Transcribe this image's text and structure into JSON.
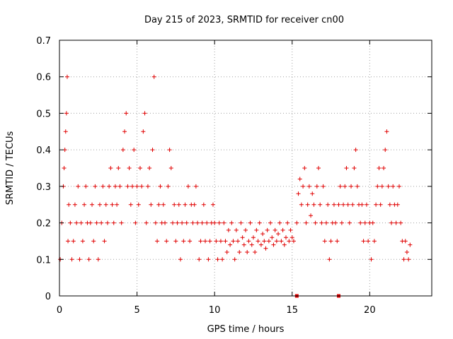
{
  "chart_data": {
    "type": "scatter",
    "title": "Day 215 of 2023, SRMTID for receiver cn00",
    "xlabel": "GPS time / hours",
    "ylabel": "SRMTID / TECUs",
    "xlim": [
      0,
      24
    ],
    "ylim": [
      0,
      0.7
    ],
    "xticks": [
      0,
      5,
      10,
      15,
      20
    ],
    "yticks": [
      0,
      0.1,
      0.2,
      0.3,
      0.4,
      0.5,
      0.6,
      0.7
    ],
    "xtick_labels": [
      "0",
      "5",
      "10",
      "15",
      "20"
    ],
    "ytick_labels": [
      "0",
      "0.1",
      "0.2",
      "0.3",
      "0.4",
      "0.5",
      "0.6",
      "0.7"
    ],
    "grid": true,
    "marker": "plus",
    "color": "#e00000",
    "series": [
      {
        "name": "SRMTID",
        "x": [
          0.05,
          0.15,
          0.25,
          0.3,
          0.35,
          0.4,
          0.45,
          0.5,
          0.55,
          0.6,
          0.7,
          0.8,
          0.9,
          1.0,
          1.1,
          1.2,
          1.3,
          1.4,
          1.5,
          1.6,
          1.7,
          1.8,
          1.9,
          2.0,
          2.1,
          2.2,
          2.3,
          2.4,
          2.5,
          2.6,
          2.7,
          2.8,
          2.9,
          3.0,
          3.1,
          3.2,
          3.3,
          3.4,
          3.5,
          3.6,
          3.7,
          3.8,
          3.9,
          4.0,
          4.1,
          4.2,
          4.3,
          4.4,
          4.5,
          4.6,
          4.7,
          4.8,
          4.9,
          5.0,
          5.1,
          5.2,
          5.3,
          5.4,
          5.5,
          5.6,
          5.7,
          5.8,
          5.9,
          6.0,
          6.1,
          6.2,
          6.3,
          6.4,
          6.5,
          6.6,
          6.7,
          6.8,
          6.9,
          7.0,
          7.1,
          7.2,
          7.3,
          7.4,
          7.5,
          7.6,
          7.7,
          7.8,
          7.9,
          8.0,
          8.1,
          8.2,
          8.3,
          8.4,
          8.5,
          8.6,
          8.7,
          8.8,
          8.9,
          9.0,
          9.1,
          9.2,
          9.3,
          9.4,
          9.5,
          9.6,
          9.7,
          9.8,
          9.9,
          10.0,
          10.1,
          10.2,
          10.3,
          10.4,
          10.5,
          10.6,
          10.7,
          10.8,
          10.9,
          11.0,
          11.1,
          11.2,
          11.3,
          11.4,
          11.5,
          11.6,
          11.7,
          11.8,
          11.9,
          12.0,
          12.1,
          12.2,
          12.3,
          12.4,
          12.5,
          12.6,
          12.7,
          12.8,
          12.9,
          13.0,
          13.1,
          13.2,
          13.3,
          13.4,
          13.5,
          13.6,
          13.7,
          13.8,
          13.9,
          14.0,
          14.1,
          14.2,
          14.3,
          14.4,
          14.5,
          14.6,
          14.7,
          14.8,
          14.9,
          15.0,
          15.1,
          15.3,
          15.4,
          15.5,
          15.6,
          15.7,
          15.8,
          15.9,
          16.0,
          16.1,
          16.2,
          16.3,
          16.4,
          16.5,
          16.6,
          16.7,
          16.8,
          16.9,
          17.0,
          17.1,
          17.2,
          17.3,
          17.4,
          17.5,
          17.6,
          17.7,
          17.8,
          17.9,
          18.0,
          18.1,
          18.2,
          18.3,
          18.4,
          18.5,
          18.6,
          18.7,
          18.8,
          18.9,
          19.0,
          19.1,
          19.2,
          19.3,
          19.4,
          19.5,
          19.6,
          19.7,
          19.8,
          19.9,
          20.0,
          20.1,
          20.2,
          20.3,
          20.4,
          20.5,
          20.6,
          20.7,
          20.8,
          20.9,
          21.0,
          21.1,
          21.2,
          21.3,
          21.4,
          21.5,
          21.6,
          21.7,
          21.8,
          21.9,
          22.0,
          22.1,
          22.2,
          22.3,
          22.4,
          22.5,
          22.6,
          0.1,
          0.2,
          0.3,
          0.35,
          0.4,
          0.45,
          0.5,
          0.6,
          0.15,
          0.25,
          0.2,
          0.1,
          0.15,
          0.25,
          0.2,
          0.3,
          0.1,
          0.2,
          0.15,
          0.25,
          0.3,
          0.2,
          0.1,
          0.2,
          0.25,
          0.15,
          0.3,
          0.2,
          0.1,
          0.25,
          0.2,
          0.3,
          0.15,
          0.25,
          0.2,
          0.3,
          0.35,
          0.25,
          0.2,
          0.3,
          0.25,
          0.35,
          0.3,
          0.2,
          0.4,
          0.45,
          0.5,
          0.3,
          0.35,
          0.25,
          0.3,
          0.4,
          0.2,
          0.3,
          0.25,
          0.35,
          0.3,
          0.45,
          0.5,
          0.2,
          0.3,
          0.35,
          0.25,
          0.4,
          0.6,
          0.2,
          0.15,
          0.25,
          0.3,
          0.2,
          0.25,
          0.2,
          0.15,
          0.3,
          0.4,
          0.35,
          0.2,
          0.25,
          0.15,
          0.2,
          0.25,
          0.1,
          0.2,
          0.15,
          0.25,
          0.2,
          0.3,
          0.15,
          0.25,
          0.2,
          0.25,
          0.3,
          0.2,
          0.1,
          0.15,
          0.2,
          0.25,
          0.15,
          0.2,
          0.1,
          0.15,
          0.2,
          0.25,
          0.2,
          0.15,
          0.1,
          0.2,
          0.15,
          0.1,
          0.2,
          0.15,
          0.12,
          0.18,
          0.14,
          0.2,
          0.15,
          0.1,
          0.18,
          0.15,
          0.12,
          0.2,
          0.16,
          0.14,
          0.18,
          0.12,
          0.15,
          0.2,
          0.14,
          0.16,
          0.12,
          0.18,
          0.15,
          0.2,
          0.14,
          0.17,
          0.15,
          0.13,
          0.18,
          0.15,
          0.2,
          0.16,
          0.14,
          0.18,
          0.15,
          0.17,
          0.2,
          0.15,
          0.18,
          0.14,
          0.16,
          0.2,
          0.15,
          0.18,
          0.16,
          0.15,
          0.2,
          0.28,
          0.32,
          0.25,
          0.3,
          0.35,
          0.2,
          0.25,
          0.3,
          0.22,
          0.28,
          0.25,
          0.2,
          0.3,
          0.35,
          0.25,
          0.2,
          0.3,
          0.15,
          0.2,
          0.25,
          0.1,
          0.15,
          0.2,
          0.25,
          0.2,
          0.15,
          0.25,
          0.3,
          0.2,
          0.25,
          0.3,
          0.35,
          0.25,
          0.2,
          0.3,
          0.25,
          0.35,
          0.4,
          0.3,
          0.25,
          0.2,
          0.25,
          0.15,
          0.2,
          0.25,
          0.15,
          0.2,
          0.1,
          0.2,
          0.15,
          0.25,
          0.3,
          0.35,
          0.25,
          0.3,
          0.35,
          0.4,
          0.45,
          0.3,
          0.25,
          0.2,
          0.3,
          0.25,
          0.2,
          0.25,
          0.3,
          0.2,
          0.15,
          0.1,
          0.15,
          0.12,
          0.1,
          0.14,
          0.12
        ]
      }
    ],
    "markers_on_axis": [
      15.3,
      18.0
    ]
  }
}
